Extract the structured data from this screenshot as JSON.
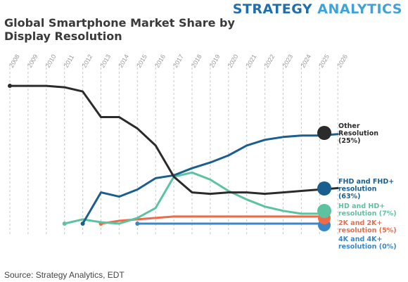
{
  "brand": {
    "word1": "STRATEGY",
    "word2": "ANALYTICS",
    "color1": "#1f6fae",
    "color2": "#3fa3d8"
  },
  "source": "Source: Strategy Analytics, EDT",
  "chart_data": {
    "type": "line",
    "title": "Global Smartphone Market Share by Display Resolution",
    "xlabel": "",
    "ylabel": "",
    "x": [
      2008,
      2009,
      2010,
      2011,
      2012,
      2013,
      2014,
      2015,
      2016,
      2017,
      2018,
      2019,
      2020,
      2021,
      2022,
      2023,
      2024,
      2025,
      2026
    ],
    "ylim": [
      0,
      100
    ],
    "grid": "vertical-dashed",
    "legend": "right-end-labels",
    "series": [
      {
        "name": "Other Resolution",
        "label_lines": [
          "Other",
          "Resolution",
          "(25%)"
        ],
        "end_value_label": "25%",
        "color": "#2b2b2b",
        "values": [
          97,
          97,
          97,
          96,
          93,
          75,
          75,
          67,
          55,
          33,
          22,
          21,
          22,
          22,
          21,
          22,
          23,
          24,
          25
        ]
      },
      {
        "name": "FHD and FHD+ resolution",
        "label_lines": [
          "FHD and FHD+",
          "resolution",
          "(63%)"
        ],
        "end_value_label": "63%",
        "color": "#1a5f8e",
        "values": [
          null,
          null,
          null,
          null,
          0,
          22,
          19,
          24,
          32,
          34,
          39,
          43,
          48,
          55,
          59,
          61,
          62,
          62,
          63
        ]
      },
      {
        "name": "HD and HD+ resolution",
        "label_lines": [
          "HD and HD+",
          "resolution (7%)"
        ],
        "end_value_label": "7%",
        "color": "#5cc3a0",
        "values": [
          null,
          null,
          null,
          0,
          3,
          1,
          0,
          4,
          11,
          33,
          36,
          31,
          23,
          17,
          12,
          9,
          7,
          7,
          null
        ]
      },
      {
        "name": "2K and 2K+ resolution",
        "label_lines": [
          "2K and 2K+",
          "resolution (5%)"
        ],
        "end_value_label": "5%",
        "color": "#ee6b4a",
        "values": [
          null,
          null,
          null,
          null,
          null,
          0,
          2,
          3,
          4,
          5,
          5,
          5,
          5,
          5,
          5,
          5,
          5,
          5,
          null
        ]
      },
      {
        "name": "4K and 4K+ resolution",
        "label_lines": [
          "4K and 4K+",
          "resolution (0%)"
        ],
        "end_value_label": "0%",
        "color": "#3b86c6",
        "values": [
          null,
          null,
          null,
          null,
          null,
          null,
          null,
          0,
          0,
          0,
          0,
          0,
          0,
          0,
          0,
          0,
          0,
          0,
          null
        ]
      }
    ]
  }
}
